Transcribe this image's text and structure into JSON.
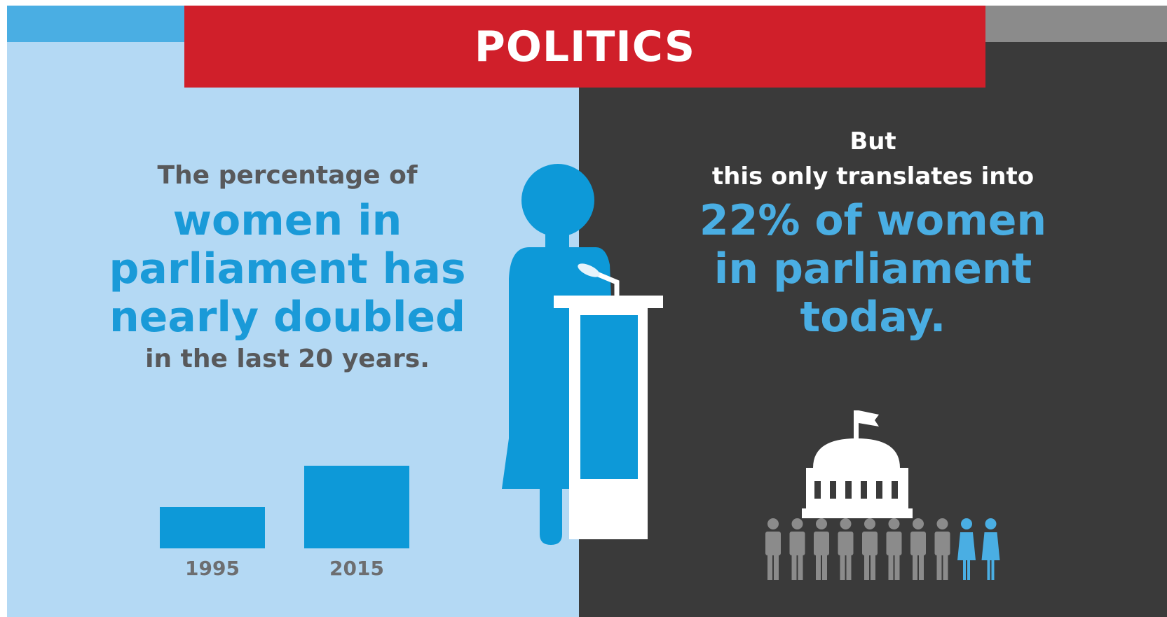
{
  "header": {
    "title": "POLITICS"
  },
  "left": {
    "intro": "The percentage of",
    "highlight_lines": [
      "women in",
      "parliament has",
      "nearly doubled"
    ],
    "outro": "in the last 20 years."
  },
  "right": {
    "line1": "But",
    "line2": "this only translates into",
    "highlight_lines": [
      "22% of women",
      "in parliament",
      "today."
    ]
  },
  "chart_data": {
    "type": "bar",
    "categories": [
      "1995",
      "2015"
    ],
    "values": [
      11,
      22
    ],
    "title": "",
    "xlabel": "",
    "ylabel": ""
  },
  "icons": {
    "speaker": "woman-at-podium-icon",
    "building": "parliament-building-icon",
    "people": "people-row-icon"
  },
  "colors": {
    "banner_red": "#d01f2a",
    "highlight_blue": "#1a9ad8",
    "left_background": "#b4d9f4",
    "right_background": "#3a3a3a"
  }
}
